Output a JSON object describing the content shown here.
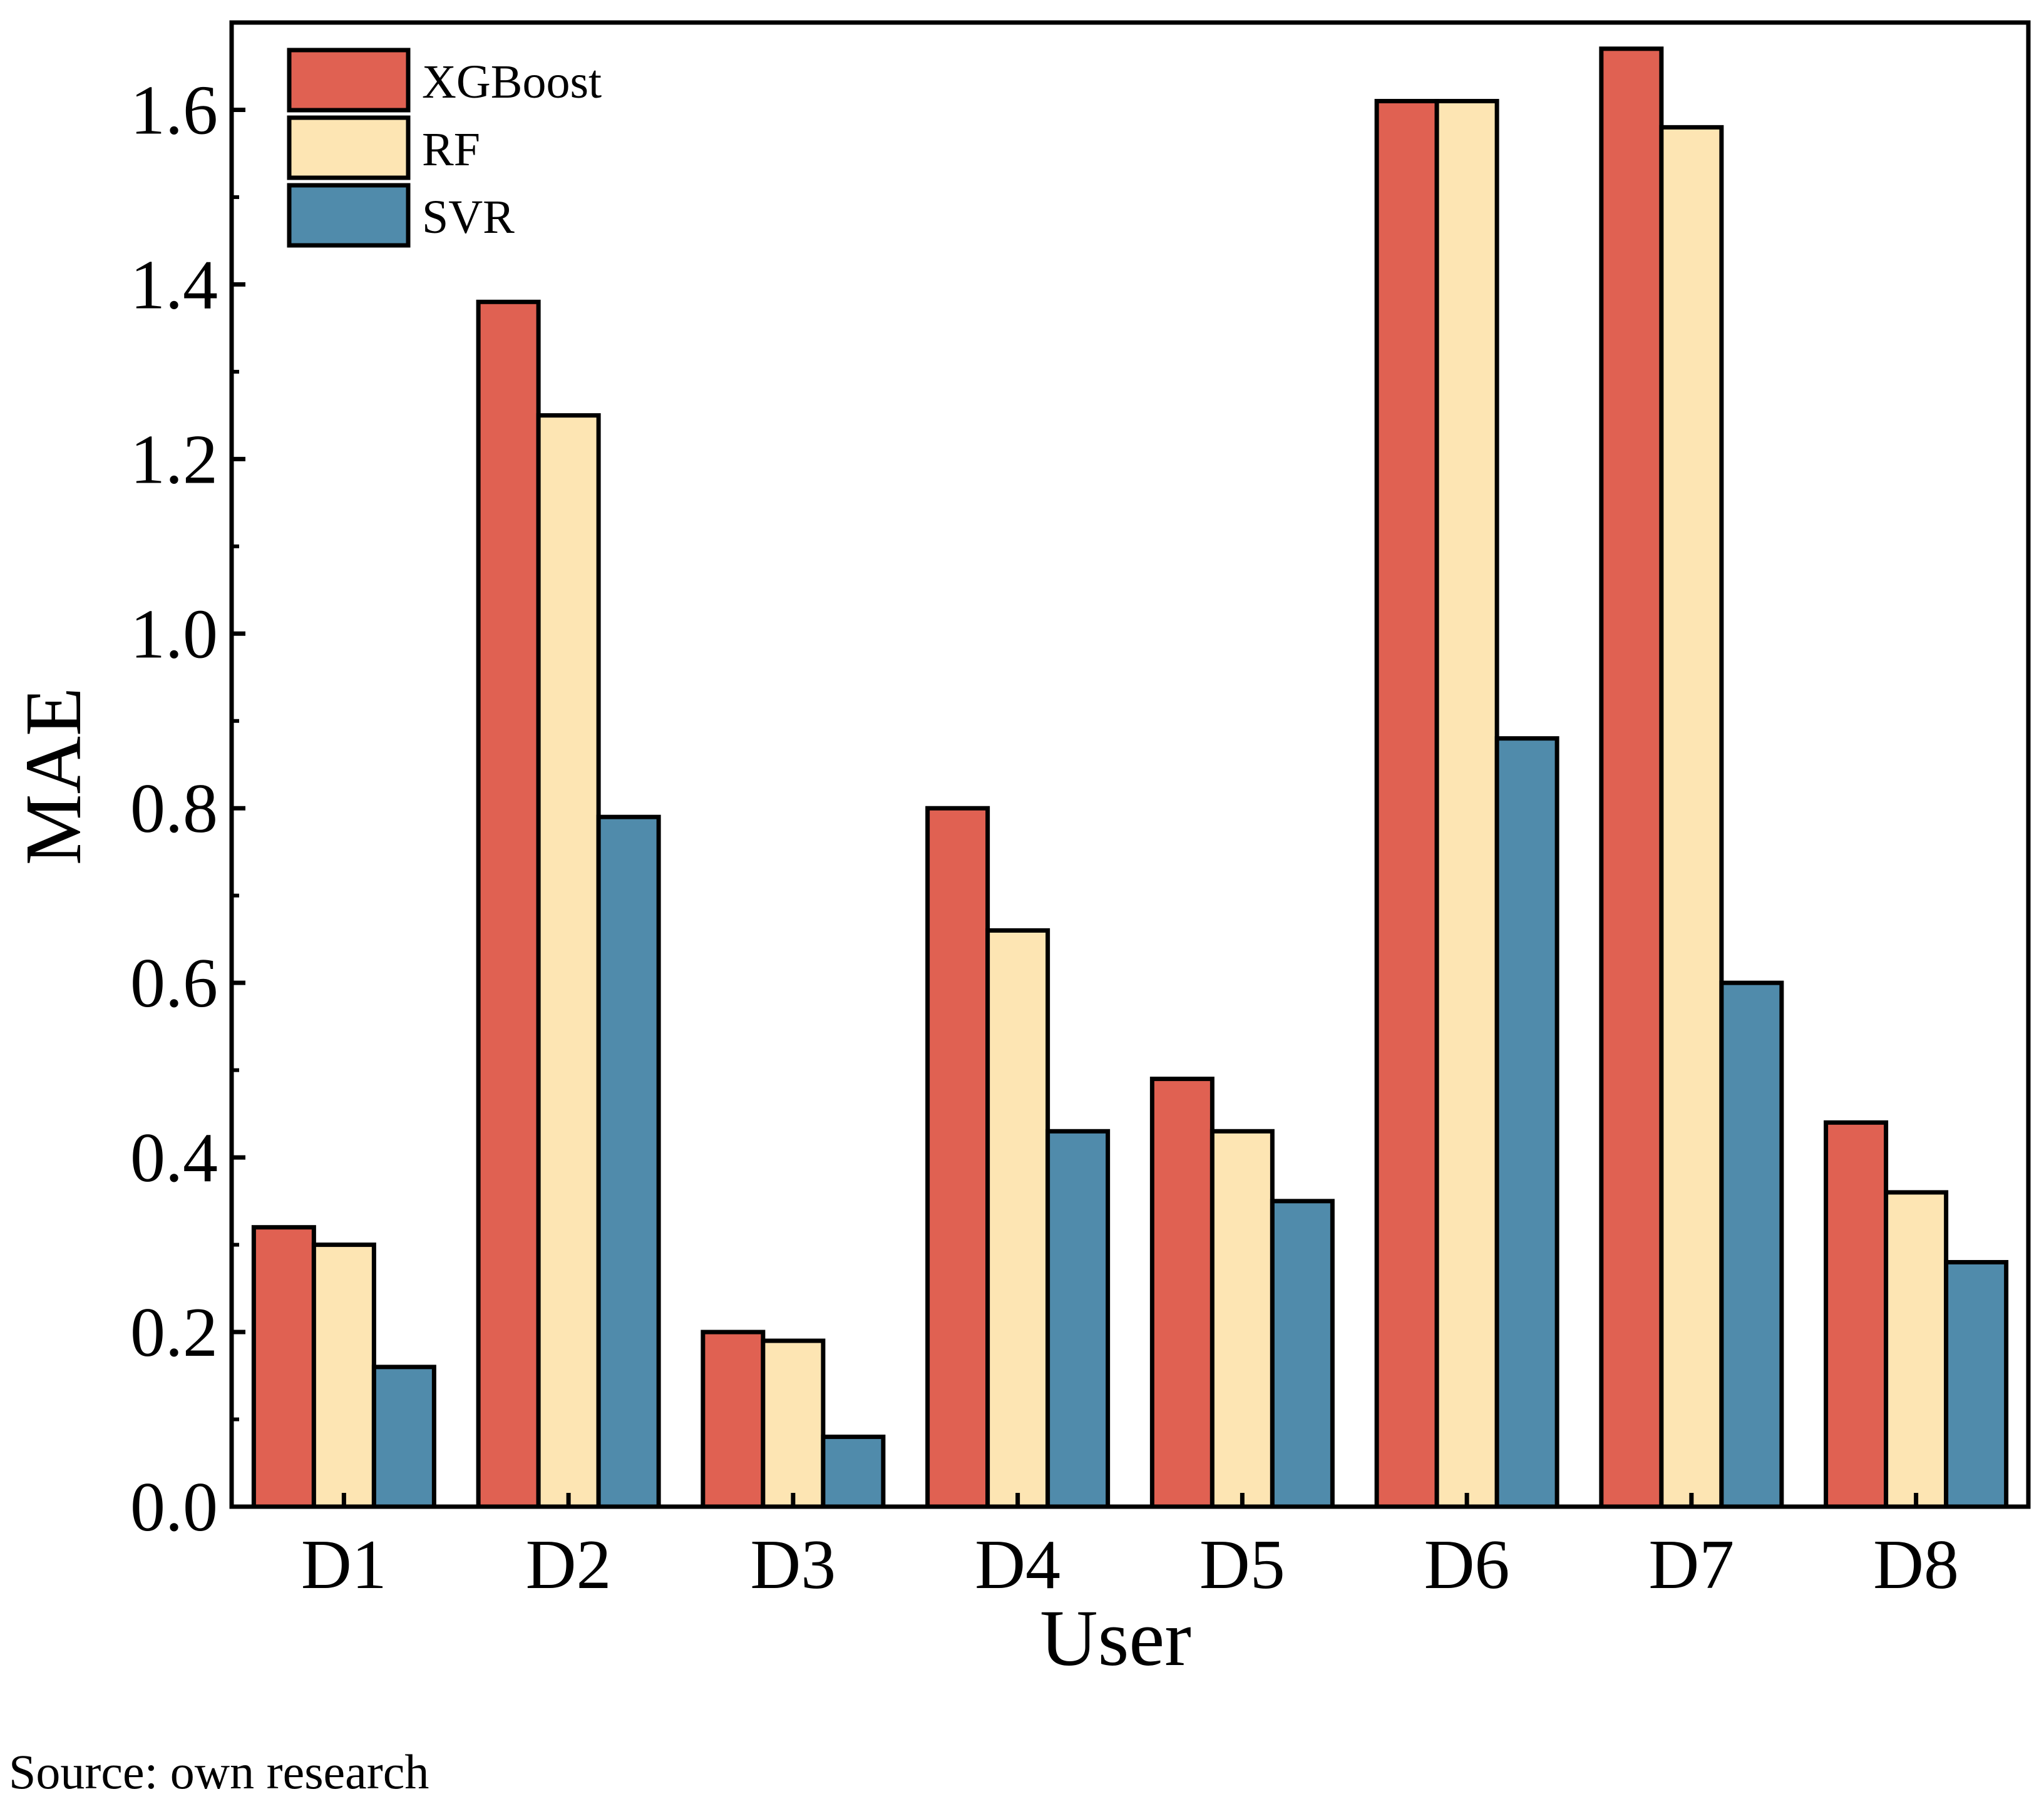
{
  "chart_data": {
    "type": "bar",
    "categories": [
      "D1",
      "D2",
      "D3",
      "D4",
      "D5",
      "D6",
      "D7",
      "D8"
    ],
    "series": [
      {
        "name": "XGBoost",
        "color": "#e06152",
        "values": [
          0.32,
          1.38,
          0.2,
          0.8,
          0.49,
          1.61,
          1.67,
          0.44
        ]
      },
      {
        "name": "RF",
        "color": "#fde5b3",
        "values": [
          0.3,
          1.25,
          0.19,
          0.66,
          0.43,
          1.61,
          1.58,
          0.36
        ]
      },
      {
        "name": "SVR",
        "color": "#508bab",
        "values": [
          0.16,
          0.79,
          0.08,
          0.43,
          0.35,
          0.88,
          0.6,
          0.28
        ]
      }
    ],
    "xlabel": "User",
    "ylabel": "MAE",
    "ylim": [
      0,
      1.7
    ],
    "yticks": [
      "0.0",
      "0.2",
      "0.4",
      "0.6",
      "0.8",
      "1.0",
      "1.2",
      "1.4",
      "1.6"
    ],
    "legend_position": "top-left",
    "grid": false
  },
  "source_note": "Source: own research"
}
